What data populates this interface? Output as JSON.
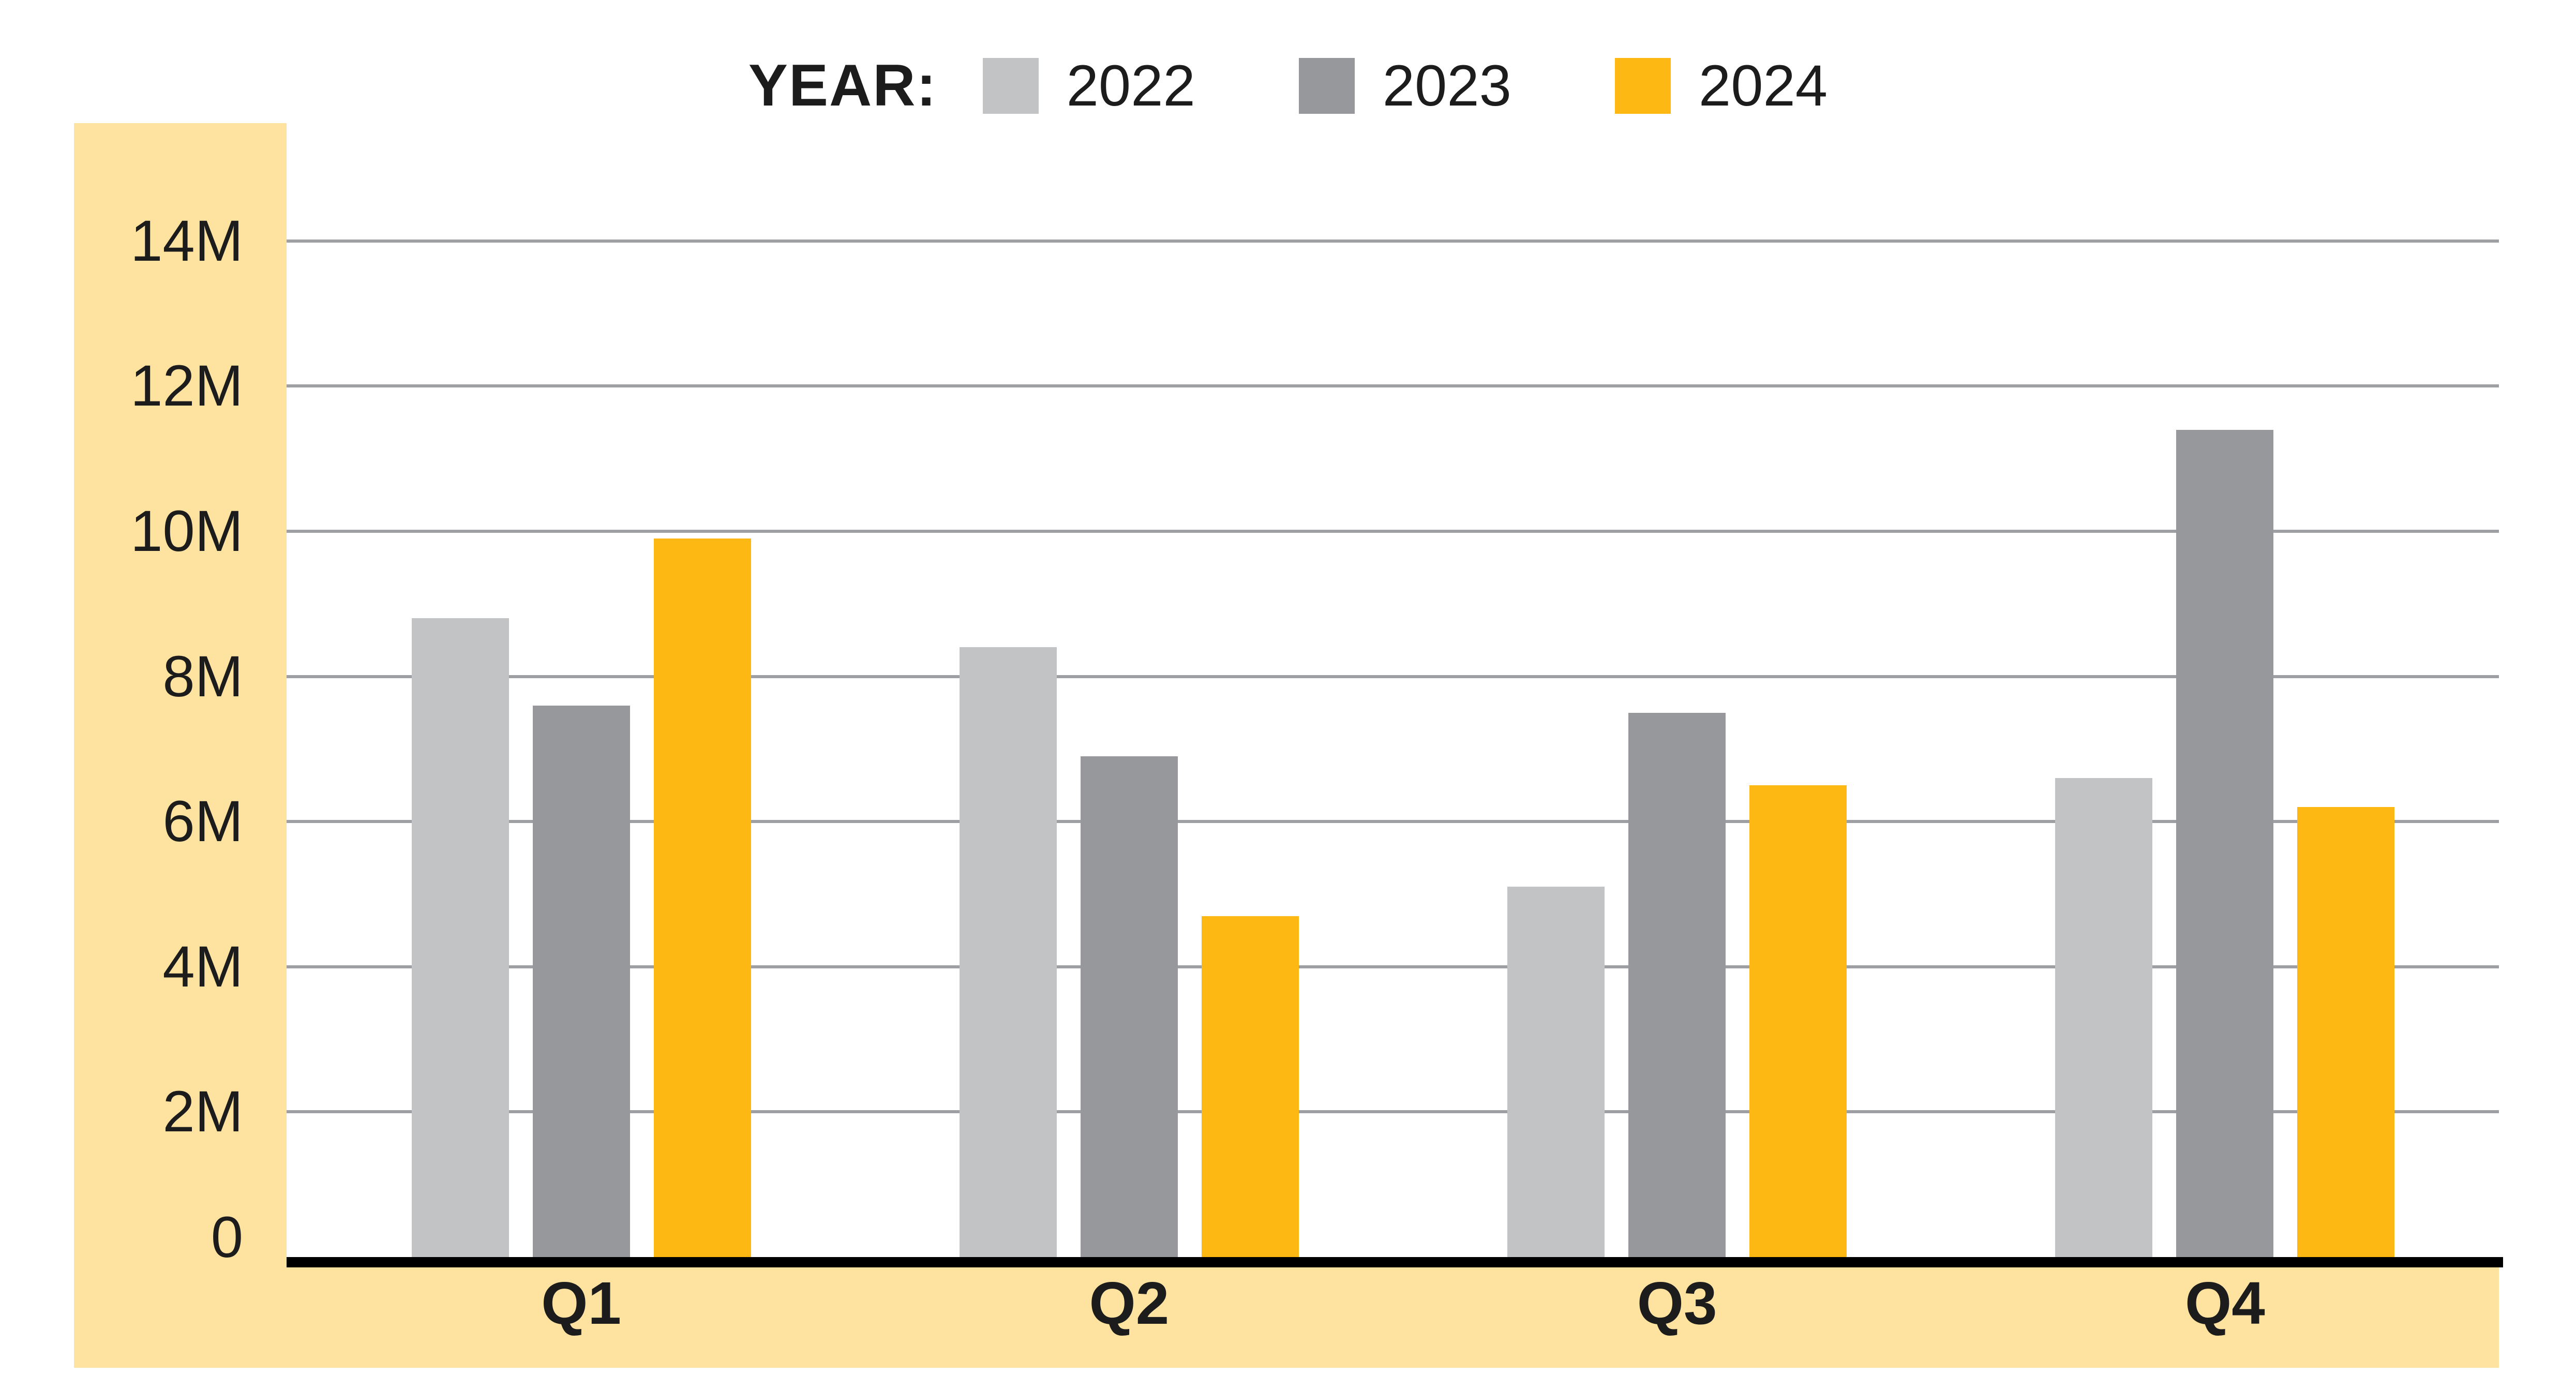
{
  "chart_data": {
    "type": "bar",
    "title": "",
    "legend_title": "YEAR:",
    "legend_position": "top",
    "categories": [
      "Q1",
      "Q2",
      "Q3",
      "Q4"
    ],
    "series": [
      {
        "name": "2022",
        "color": "#c2c3c5",
        "values": [
          8.8,
          8.4,
          5.1,
          6.6
        ]
      },
      {
        "name": "2023",
        "color": "#96989b",
        "values": [
          7.6,
          6.9,
          7.5,
          11.4
        ]
      },
      {
        "name": "2024",
        "color": "#fdb813",
        "values": [
          9.9,
          4.7,
          6.5,
          6.2
        ]
      }
    ],
    "unit": "M",
    "xlabel": "",
    "ylabel": "",
    "y_ticks": [
      {
        "label": "14M",
        "value": 14
      },
      {
        "label": "12M",
        "value": 12
      },
      {
        "label": "10M",
        "value": 10
      },
      {
        "label": "8M",
        "value": 8
      },
      {
        "label": "6M",
        "value": 6
      },
      {
        "label": "4M",
        "value": 4
      },
      {
        "label": "2M",
        "value": 2
      },
      {
        "label": "0",
        "value": 0
      }
    ],
    "ylim": [
      0,
      15.6
    ],
    "grid": true,
    "colors": {
      "band": "#fde2a0",
      "gridline": "#9d9fa2",
      "axis": "#000000",
      "text": "#1c1c1c",
      "plot_background": "#ffffff"
    }
  }
}
